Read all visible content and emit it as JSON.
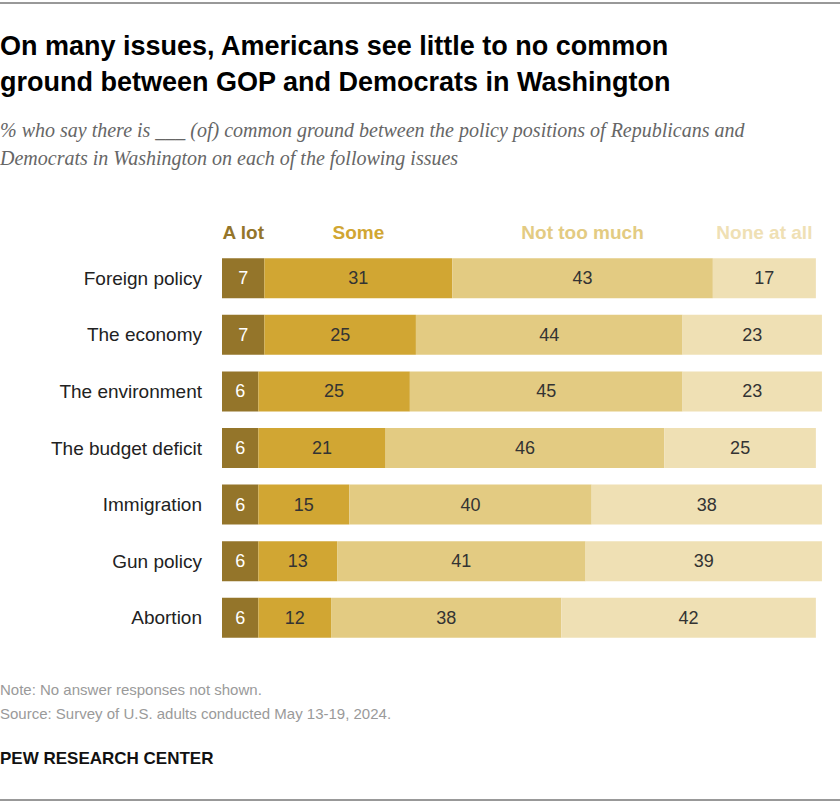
{
  "chart_data": {
    "type": "bar",
    "title": "On many issues, Americans see little to no common ground between GOP and Democrats in Washington",
    "subtitle": "% who say there is ___ (of) common ground between the policy positions of Republicans and Democrats in Washington on each of the following issues",
    "categories": [
      "Foreign policy",
      "The economy",
      "The environment",
      "The budget deficit",
      "Immigration",
      "Gun policy",
      "Abortion"
    ],
    "series": [
      {
        "name": "A lot",
        "color": "#94752a",
        "values": [
          7,
          7,
          6,
          6,
          6,
          6,
          6
        ]
      },
      {
        "name": "Some",
        "color": "#d1a633",
        "values": [
          31,
          25,
          25,
          21,
          15,
          13,
          12
        ]
      },
      {
        "name": "Not too much",
        "color": "#e3cb82",
        "values": [
          43,
          44,
          45,
          46,
          40,
          41,
          38
        ]
      },
      {
        "name": "None at all",
        "color": "#efe0b4",
        "values": [
          17,
          23,
          23,
          25,
          38,
          39,
          42
        ]
      }
    ],
    "orientation": "horizontal",
    "stacked": true,
    "data_labels": true,
    "tick_labels": "y",
    "grid": false,
    "xlim": [
      0,
      100
    ],
    "note": "Note: No answer responses not shown.",
    "source": "Source: Survey of U.S. adults conducted May 13-19, 2024.",
    "credit": "PEW RESEARCH CENTER"
  }
}
